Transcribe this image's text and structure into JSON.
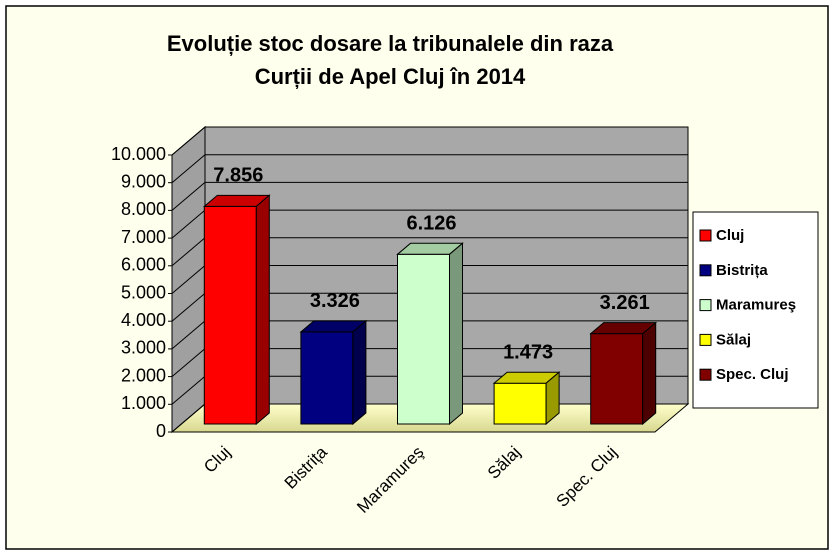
{
  "chart_data": {
    "type": "bar3d",
    "title": "Evoluție stoc dosare la tribunalele din raza",
    "subtitle": "Curții de Apel Cluj în 2014",
    "categories": [
      "Cluj",
      "Bistrița",
      "Maramureş",
      "Sălaj",
      "Spec. Cluj"
    ],
    "values": [
      7856,
      3326,
      6126,
      1473,
      3261
    ],
    "value_labels": [
      "7.856",
      "3.326",
      "6.126",
      "1.473",
      "3.261"
    ],
    "colors": [
      "#ff0000",
      "#000080",
      "#ccffcc",
      "#ffff00",
      "#800000"
    ],
    "ylim": [
      0,
      10000
    ],
    "yticks": [
      0,
      {
        "value": 1000,
        "label": "1.000"
      },
      {
        "value": 2000,
        "label": "2.000"
      },
      {
        "value": 3000,
        "label": "3.000"
      },
      {
        "value": 4000,
        "label": "4.000"
      },
      {
        "value": 5000,
        "label": "5.000"
      },
      {
        "value": 6000,
        "label": "6.000"
      },
      {
        "value": 7000,
        "label": "7.000"
      },
      {
        "value": 8000,
        "label": "8.000"
      },
      {
        "value": 9000,
        "label": "9.000"
      },
      {
        "value": 10000,
        "label": "10.000"
      }
    ],
    "grid": true,
    "legend": "right"
  }
}
